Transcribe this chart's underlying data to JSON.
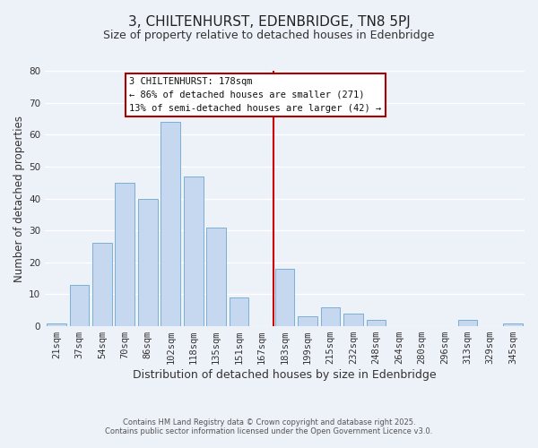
{
  "title": "3, CHILTENHURST, EDENBRIDGE, TN8 5PJ",
  "subtitle": "Size of property relative to detached houses in Edenbridge",
  "xlabel": "Distribution of detached houses by size in Edenbridge",
  "ylabel": "Number of detached properties",
  "bar_labels": [
    "21sqm",
    "37sqm",
    "54sqm",
    "70sqm",
    "86sqm",
    "102sqm",
    "118sqm",
    "135sqm",
    "151sqm",
    "167sqm",
    "183sqm",
    "199sqm",
    "215sqm",
    "232sqm",
    "248sqm",
    "264sqm",
    "280sqm",
    "296sqm",
    "313sqm",
    "329sqm",
    "345sqm"
  ],
  "bar_values": [
    1,
    13,
    26,
    45,
    40,
    64,
    47,
    31,
    9,
    0,
    18,
    3,
    6,
    4,
    2,
    0,
    0,
    0,
    2,
    0,
    1
  ],
  "bar_color": "#c5d8f0",
  "bar_edge_color": "#7bafd4",
  "vline_color": "#cc0000",
  "annotation_title": "3 CHILTENHURST: 178sqm",
  "annotation_line1": "← 86% of detached houses are smaller (271)",
  "annotation_line2": "13% of semi-detached houses are larger (42) →",
  "annotation_box_color": "#ffffff",
  "annotation_box_edge": "#aa0000",
  "ylim": [
    0,
    80
  ],
  "footer1": "Contains HM Land Registry data © Crown copyright and database right 2025.",
  "footer2": "Contains public sector information licensed under the Open Government Licence v3.0.",
  "bg_color": "#edf1f8",
  "grid_color": "#ffffff",
  "title_fontsize": 11,
  "subtitle_fontsize": 9,
  "tick_fontsize": 7.5,
  "ylabel_fontsize": 8.5,
  "xlabel_fontsize": 9,
  "footer_fontsize": 6,
  "annotation_fontsize": 7.5
}
